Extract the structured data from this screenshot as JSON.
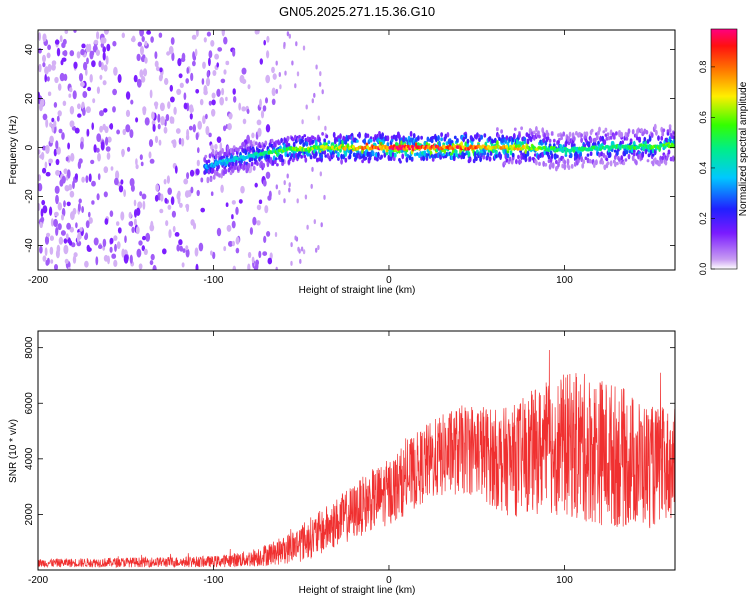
{
  "title": "GN05.2025.271.15.36.G10",
  "colors": {
    "line": "#f03030",
    "frame": "#000000",
    "background": "#ffffff"
  },
  "chart_data": [
    {
      "type": "heatmap",
      "title": "GN05.2025.271.15.36.G10",
      "xlabel": "Height of straight line (km)",
      "ylabel": "Frequency (Hz)",
      "xlim": [
        -200,
        163
      ],
      "ylim": [
        -50,
        48
      ],
      "xticks": [
        -200,
        -100,
        0,
        100
      ],
      "yticks": [
        -40,
        -20,
        0,
        20,
        40
      ],
      "colorbar": {
        "label": "Normalized spectral amplitude",
        "range": [
          0,
          0.95
        ],
        "ticks": [
          0.0,
          0.2,
          0.4,
          0.6,
          0.8
        ],
        "tick_labels": [
          "0.0",
          "0.2",
          "0.4",
          "0.6",
          "0.8"
        ],
        "colormap": "white-purple-blue-cyan-green-yellow-orange-red-magenta"
      },
      "features": {
        "noise_region_x": [
          -200,
          -65
        ],
        "noise_amplitude": 0.08,
        "ridge_start_x": -105,
        "ridge_center_hz": [
          {
            "x": -105,
            "y": -8
          },
          {
            "x": -90,
            "y": -5
          },
          {
            "x": -75,
            "y": -3
          },
          {
            "x": -60,
            "y": -1
          },
          {
            "x": -40,
            "y": 0
          },
          {
            "x": -20,
            "y": 0
          },
          {
            "x": 0,
            "y": 0
          },
          {
            "x": 40,
            "y": 0
          },
          {
            "x": 80,
            "y": 0
          },
          {
            "x": 100,
            "y": -1
          },
          {
            "x": 130,
            "y": 0
          },
          {
            "x": 163,
            "y": 1
          }
        ],
        "ridge_peak_amplitude": [
          {
            "x": -105,
            "y": 0.35
          },
          {
            "x": -80,
            "y": 0.45
          },
          {
            "x": -60,
            "y": 0.6
          },
          {
            "x": -30,
            "y": 0.7
          },
          {
            "x": 0,
            "y": 0.95
          },
          {
            "x": 40,
            "y": 0.9
          },
          {
            "x": 80,
            "y": 0.7
          },
          {
            "x": 100,
            "y": 0.5
          },
          {
            "x": 130,
            "y": 0.55
          },
          {
            "x": 163,
            "y": 0.6
          }
        ]
      }
    },
    {
      "type": "line",
      "xlabel": "Height of straight line (km)",
      "ylabel": "SNR (10 * v/v)",
      "xlim": [
        -200,
        163
      ],
      "ylim": [
        0,
        8600
      ],
      "xticks": [
        -200,
        -100,
        0,
        100
      ],
      "yticks": [
        2000,
        4000,
        6000,
        8000
      ],
      "series": [
        {
          "name": "SNR",
          "color": "#f03030",
          "envelope_x": [
            -200,
            -100,
            -80,
            -60,
            -50,
            -40,
            -30,
            -20,
            -10,
            0,
            10,
            20,
            30,
            40,
            50,
            60,
            70,
            80,
            90,
            100,
            110,
            120,
            130,
            140,
            150,
            163
          ],
          "envelope_mean": [
            250,
            300,
            400,
            700,
            1000,
            1300,
            1700,
            2100,
            2500,
            2800,
            3300,
            3800,
            4100,
            4300,
            4400,
            4000,
            3900,
            4200,
            4400,
            4500,
            4400,
            4300,
            4100,
            3900,
            3700,
            3800
          ],
          "envelope_spread": [
            150,
            200,
            300,
            500,
            700,
            800,
            900,
            1000,
            1100,
            1200,
            1300,
            1400,
            1500,
            1600,
            1700,
            1800,
            2000,
            2200,
            2400,
            2600,
            2700,
            2700,
            2600,
            2400,
            2200,
            2000
          ]
        }
      ]
    }
  ]
}
